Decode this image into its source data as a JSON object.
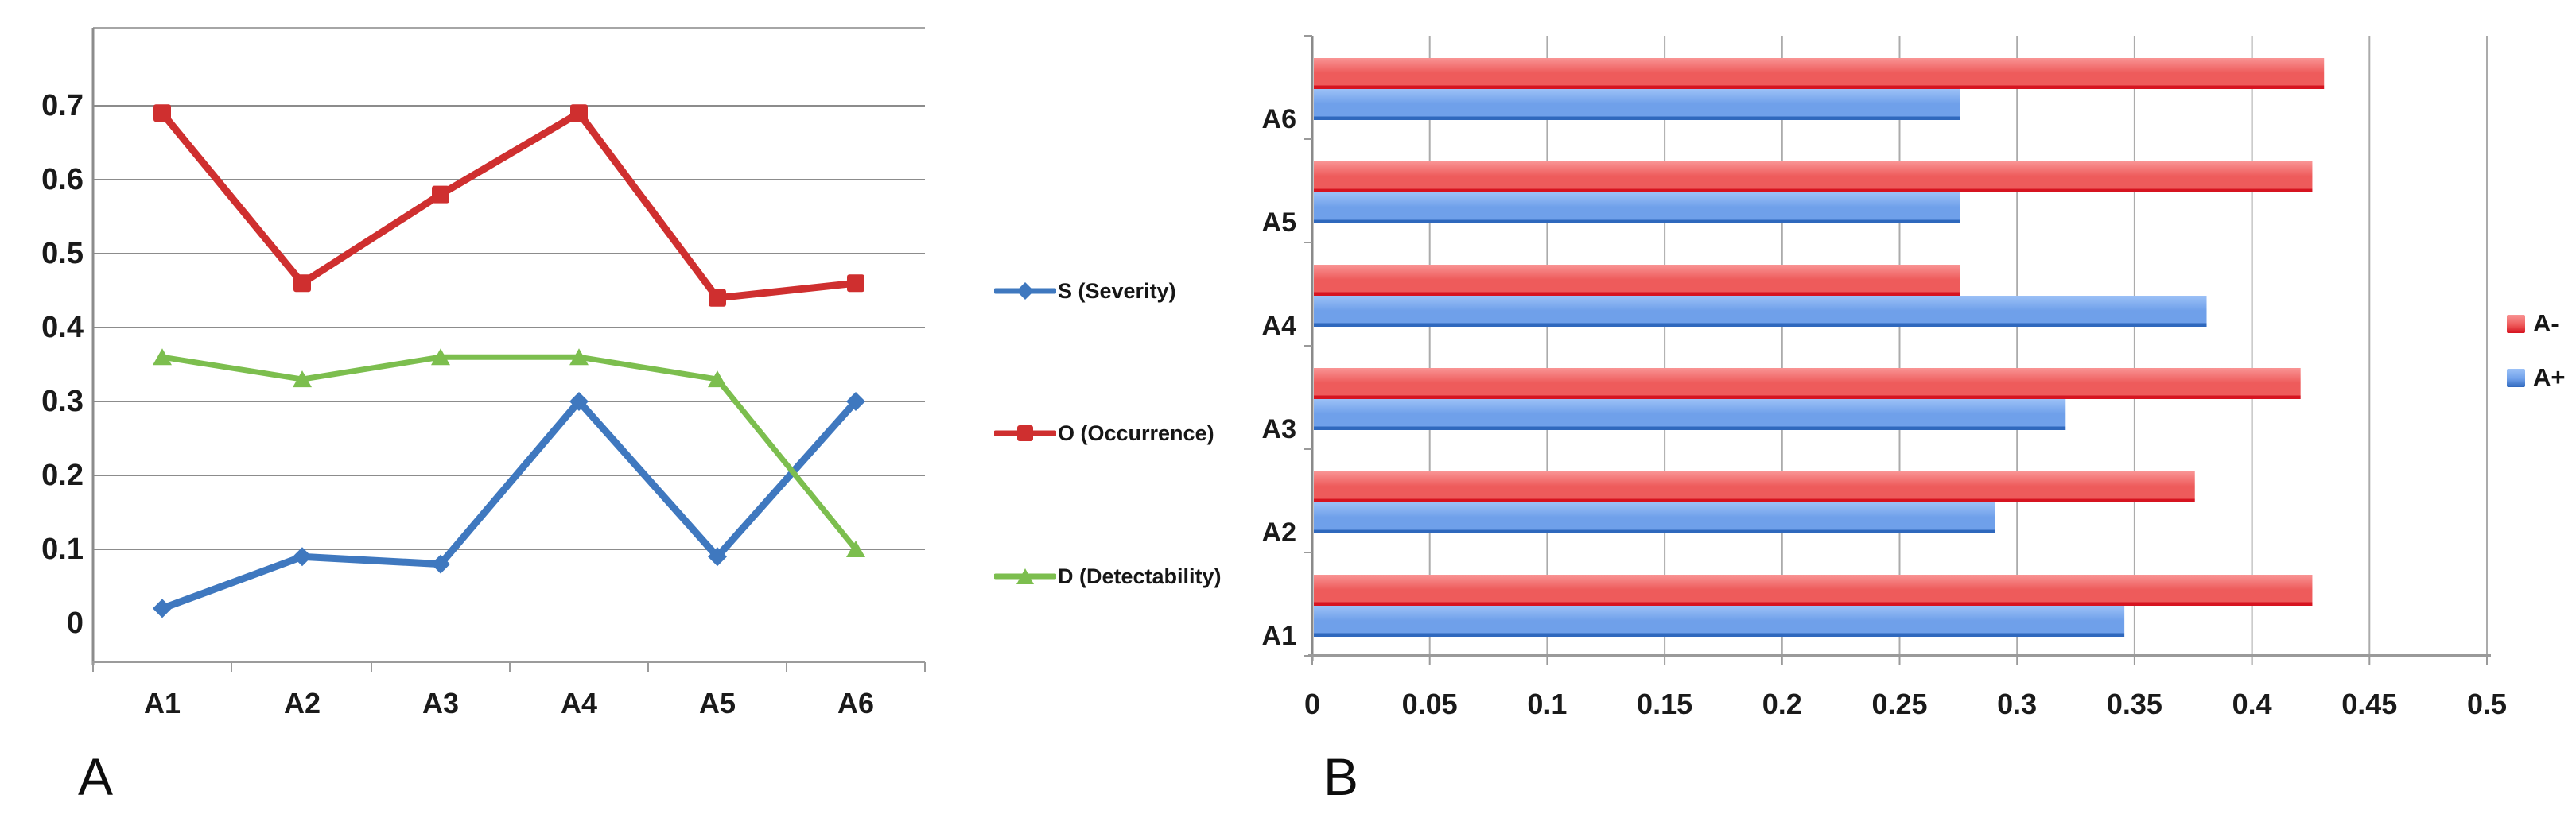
{
  "figure": {
    "background": "#ffffff"
  },
  "chart_data": [
    {
      "panel_label": "A",
      "type": "line",
      "categories": [
        "A1",
        "A2",
        "A3",
        "A4",
        "A5",
        "A6"
      ],
      "y_ticks": [
        "0",
        "0.1",
        "0.2",
        "0.3",
        "0.4",
        "0.5",
        "0.6",
        "0.7"
      ],
      "ylim": [
        0,
        0.78
      ],
      "grid": "horizontal gridlines on",
      "legend_position": "right of plot",
      "series": [
        {
          "name": "S (Severity)",
          "marker": "diamond",
          "color": "#3f78bf",
          "values": [
            0.02,
            0.09,
            0.08,
            0.3,
            0.09,
            0.3
          ]
        },
        {
          "name": "O  (Occurrence)",
          "marker": "square",
          "color": "#cf2f2f",
          "values": [
            0.69,
            0.46,
            0.58,
            0.69,
            0.44,
            0.46
          ]
        },
        {
          "name": "D (Detectability)",
          "marker": "triangle",
          "color": "#7cbe4e",
          "values": [
            0.36,
            0.33,
            0.36,
            0.36,
            0.33,
            0.1
          ]
        }
      ]
    },
    {
      "panel_label": "B",
      "type": "bar-horizontal",
      "categories_top_to_bottom": [
        "A6",
        "A5",
        "A4",
        "A3",
        "A2",
        "A1"
      ],
      "x_ticks": [
        "0",
        "0.05",
        "0.1",
        "0.15",
        "0.2",
        "0.25",
        "0.3",
        "0.35",
        "0.4",
        "0.45",
        "0.5"
      ],
      "xlim": [
        0,
        0.5
      ],
      "grid": "vertical gridlines on",
      "legend_position": "right of plot",
      "series": [
        {
          "name": "A-",
          "color": "#ee5b5b",
          "color_light": "#f99494",
          "color_dark": "#d61420",
          "values": [
            0.43,
            0.425,
            0.275,
            0.42,
            0.375,
            0.425
          ]
        },
        {
          "name": "A+",
          "color": "#6fa0ea",
          "color_light": "#9cc1f7",
          "color_dark": "#2f68bd",
          "values": [
            0.275,
            0.275,
            0.38,
            0.32,
            0.29,
            0.345
          ]
        }
      ]
    }
  ]
}
